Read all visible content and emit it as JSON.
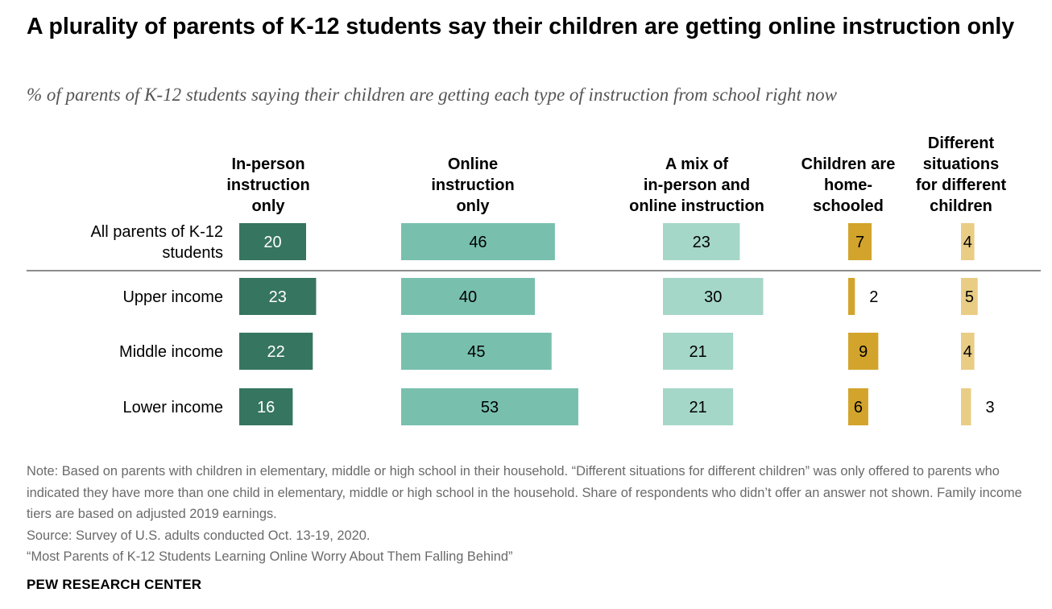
{
  "title": "A plurality of parents of K-12 students say their children are getting online instruction only",
  "subtitle": "% of parents of K-12 students saying their children are getting each type of instruction from school right now",
  "chart_data": {
    "type": "bar",
    "categories": [
      "All parents of K-12 students",
      "Upper income",
      "Middle income",
      "Lower income"
    ],
    "series": [
      {
        "name": "In-person instruction only",
        "color": "#36755f",
        "label_color": "#ffffff",
        "values": [
          20,
          23,
          22,
          16
        ]
      },
      {
        "name": "Online instruction only",
        "color": "#78bfae",
        "label_color": "#000000",
        "values": [
          46,
          40,
          45,
          53
        ]
      },
      {
        "name": "A mix of in-person and online instruction",
        "color": "#a5d7c9",
        "label_color": "#000000",
        "values": [
          23,
          30,
          21,
          21
        ]
      },
      {
        "name": "Children are home-schooled",
        "color": "#d3a42c",
        "label_color": "#000000",
        "values": [
          7,
          2,
          9,
          6
        ]
      },
      {
        "name": "Different situations for different children",
        "color": "#e9cd85",
        "label_color": "#000000",
        "values": [
          4,
          5,
          4,
          3
        ]
      }
    ],
    "column_headers": [
      [
        "In-person",
        "instruction",
        "only"
      ],
      [
        "Online",
        "instruction",
        "only"
      ],
      [
        "A mix of",
        "in-person and",
        "online instruction"
      ],
      [
        "Children are",
        "home-",
        "schooled"
      ],
      [
        "Different",
        "situations",
        "for different",
        "children"
      ]
    ],
    "row_label_lines": [
      [
        "All parents of K-12",
        "students"
      ],
      [
        "Upper income"
      ],
      [
        "Middle income"
      ],
      [
        "Lower income"
      ]
    ],
    "unit": "%"
  },
  "notes": {
    "note": "Note: Based on parents with children in elementary, middle or high school in their household. “Different situations for different children” was only offered to parents who indicated they have more than one child in elementary, middle or high school in the household. Share of respondents who didn’t offer an answer not shown. Family income tiers are based on adjusted 2019 earnings.",
    "source": "Source: Survey of U.S. adults conducted Oct. 13-19, 2020.",
    "report": "“Most Parents of K-12 Students Learning Online Worry About Them Falling Behind”"
  },
  "brand": "PEW RESEARCH CENTER"
}
